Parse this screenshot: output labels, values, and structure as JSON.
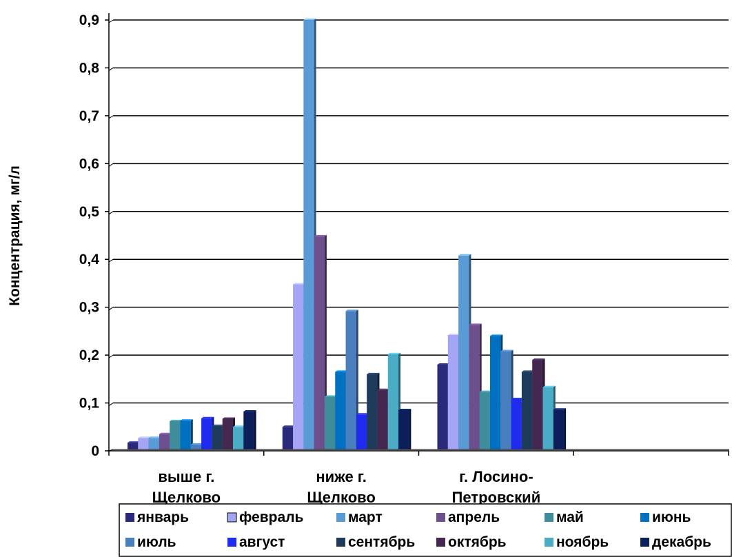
{
  "chart_data": {
    "type": "bar",
    "ylabel": "Концентрация, мг/л",
    "xlabel": "",
    "ylim": [
      0,
      0.9
    ],
    "yticks": [
      "0",
      "0,1",
      "0,2",
      "0,3",
      "0,4",
      "0,5",
      "0,6",
      "0,7",
      "0,8",
      "0,9"
    ],
    "grid": true,
    "legend_position": "bottom",
    "categories": [
      [
        "выше г.",
        "Щелково"
      ],
      [
        "ниже г.",
        "Щелково"
      ],
      [
        "г. Лосино-",
        "Петровский"
      ],
      [
        "",
        ""
      ]
    ],
    "series": [
      {
        "name": "январь",
        "color": "#2b2a7a",
        "values": [
          0.017,
          0.05,
          0.18,
          null
        ]
      },
      {
        "name": "февраль",
        "color": "#a5a5f5",
        "values": [
          0.027,
          0.348,
          0.242,
          null
        ]
      },
      {
        "name": "март",
        "color": "#5b9bd5",
        "values": [
          0.027,
          0.9,
          0.408,
          null
        ]
      },
      {
        "name": "апрель",
        "color": "#6e4f8e",
        "values": [
          0.035,
          0.448,
          0.263,
          null
        ]
      },
      {
        "name": "май",
        "color": "#3f8c9a",
        "values": [
          0.062,
          0.113,
          0.123,
          null
        ]
      },
      {
        "name": "июнь",
        "color": "#0070c0",
        "values": [
          0.063,
          0.165,
          0.24,
          null
        ]
      },
      {
        "name": "июль",
        "color": "#4a7fbf",
        "values": [
          0.013,
          0.292,
          0.208,
          null
        ]
      },
      {
        "name": "август",
        "color": "#1f2cf0",
        "values": [
          0.068,
          0.076,
          0.108,
          null
        ]
      },
      {
        "name": "сентябрь",
        "color": "#1f3b5c",
        "values": [
          0.052,
          0.16,
          0.165,
          null
        ]
      },
      {
        "name": "октябрь",
        "color": "#44284f",
        "values": [
          0.067,
          0.127,
          0.19,
          null
        ]
      },
      {
        "name": "ноябрь",
        "color": "#4bacc6",
        "values": [
          0.05,
          0.202,
          0.133,
          null
        ]
      },
      {
        "name": "декабрь",
        "color": "#0b1f5c",
        "values": [
          0.082,
          0.085,
          0.086,
          null
        ]
      }
    ]
  }
}
